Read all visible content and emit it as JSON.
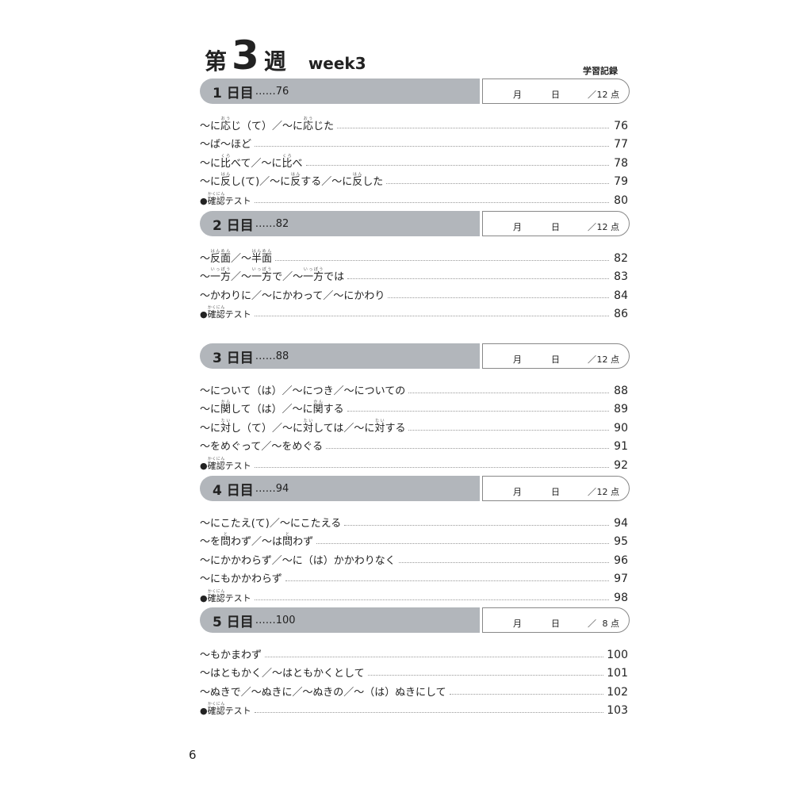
{
  "title": {
    "prefix": "第",
    "number": "3",
    "suffix": "週",
    "english": "week3"
  },
  "record_label": "学習記録",
  "box_labels": {
    "month": "月",
    "day": "日",
    "slash": "／"
  },
  "sections": [
    {
      "day": "1 日目",
      "page": "……76",
      "score": "12 点",
      "entries": [
        {
          "parts": [
            {
              "t": "～に"
            },
            {
              "t": "応",
              "r": "おう"
            },
            {
              "t": "じ（て）／～に"
            },
            {
              "t": "応",
              "r": "おう"
            },
            {
              "t": "じた"
            }
          ],
          "page": "76"
        },
        {
          "parts": [
            {
              "t": "～ば～ほど"
            }
          ],
          "page": "77"
        },
        {
          "parts": [
            {
              "t": "～に"
            },
            {
              "t": "比",
              "r": "くら"
            },
            {
              "t": "べて／～に"
            },
            {
              "t": "比",
              "r": "くら"
            },
            {
              "t": "べ"
            }
          ],
          "page": "78"
        },
        {
          "parts": [
            {
              "t": "～に"
            },
            {
              "t": "反",
              "r": "はん"
            },
            {
              "t": "し(て)／～に"
            },
            {
              "t": "反",
              "r": "はん"
            },
            {
              "t": "する／～に"
            },
            {
              "t": "反",
              "r": "はん"
            },
            {
              "t": "した"
            }
          ],
          "page": "79"
        },
        {
          "test": true,
          "parts": [
            {
              "t": "●"
            },
            {
              "t": "確認",
              "r": "かくにん"
            },
            {
              "t": "テスト"
            }
          ],
          "page": "80"
        }
      ]
    },
    {
      "day": "2 日目",
      "page": "……82",
      "score": "12 点",
      "entries": [
        {
          "parts": [
            {
              "t": "～"
            },
            {
              "t": "反面",
              "r": "はんめん"
            },
            {
              "t": "／～"
            },
            {
              "t": "半面",
              "r": "はんめん"
            }
          ],
          "page": "82"
        },
        {
          "parts": [
            {
              "t": "～"
            },
            {
              "t": "一方",
              "r": "いっぽう"
            },
            {
              "t": "／～"
            },
            {
              "t": "一方",
              "r": "いっぽう"
            },
            {
              "t": "で／～"
            },
            {
              "t": "一方",
              "r": "いっぽう"
            },
            {
              "t": "では"
            }
          ],
          "page": "83"
        },
        {
          "parts": [
            {
              "t": "～かわりに／～にかわって／～にかわり"
            }
          ],
          "page": "84"
        },
        {
          "test": true,
          "parts": [
            {
              "t": "●"
            },
            {
              "t": "確認",
              "r": "かくにん"
            },
            {
              "t": "テスト"
            }
          ],
          "page": "86"
        }
      ]
    },
    {
      "day": "3 日目",
      "page": "……88",
      "score": "12 点",
      "entries": [
        {
          "parts": [
            {
              "t": "～について（は）／～につき／～についての"
            }
          ],
          "page": "88"
        },
        {
          "parts": [
            {
              "t": "～に"
            },
            {
              "t": "関",
              "r": "かん"
            },
            {
              "t": "して（は）／～に"
            },
            {
              "t": "関",
              "r": "かん"
            },
            {
              "t": "する"
            }
          ],
          "page": "89"
        },
        {
          "parts": [
            {
              "t": "～に"
            },
            {
              "t": "対",
              "r": "たい"
            },
            {
              "t": "し（て）／～に"
            },
            {
              "t": "対",
              "r": "たい"
            },
            {
              "t": "しては／～に"
            },
            {
              "t": "対",
              "r": "たい"
            },
            {
              "t": "する"
            }
          ],
          "page": "90"
        },
        {
          "parts": [
            {
              "t": "～をめぐって／～をめぐる"
            }
          ],
          "page": "91"
        },
        {
          "test": true,
          "parts": [
            {
              "t": "●"
            },
            {
              "t": "確認",
              "r": "かくにん"
            },
            {
              "t": "テスト"
            }
          ],
          "page": "92"
        }
      ]
    },
    {
      "day": "4 日目",
      "page": "……94",
      "score": "12 点",
      "entries": [
        {
          "parts": [
            {
              "t": "～にこたえ(て)／～にこたえる"
            }
          ],
          "page": "94"
        },
        {
          "parts": [
            {
              "t": "～を"
            },
            {
              "t": "問",
              "r": "と"
            },
            {
              "t": "わず／～は"
            },
            {
              "t": "問",
              "r": "と"
            },
            {
              "t": "わず"
            }
          ],
          "page": "95"
        },
        {
          "parts": [
            {
              "t": "～にかかわらず／～に（は）かかわりなく"
            }
          ],
          "page": "96"
        },
        {
          "parts": [
            {
              "t": "～にもかかわらず"
            }
          ],
          "page": "97"
        },
        {
          "test": true,
          "parts": [
            {
              "t": "●"
            },
            {
              "t": "確認",
              "r": "かくにん"
            },
            {
              "t": "テスト"
            }
          ],
          "page": "98"
        }
      ]
    },
    {
      "day": "5 日目",
      "page": "……100",
      "score": "8 点",
      "entries": [
        {
          "parts": [
            {
              "t": "～もかまわず"
            }
          ],
          "page": "100"
        },
        {
          "parts": [
            {
              "t": "～はともかく／～はともかくとして"
            }
          ],
          "page": "101"
        },
        {
          "parts": [
            {
              "t": "～ぬきで／～ぬきに／～ぬきの／～（は）ぬきにして"
            }
          ],
          "page": "102"
        },
        {
          "test": true,
          "parts": [
            {
              "t": "●"
            },
            {
              "t": "確認",
              "r": "かくにん"
            },
            {
              "t": "テスト"
            }
          ],
          "page": "103"
        }
      ]
    }
  ],
  "page_number": "6"
}
